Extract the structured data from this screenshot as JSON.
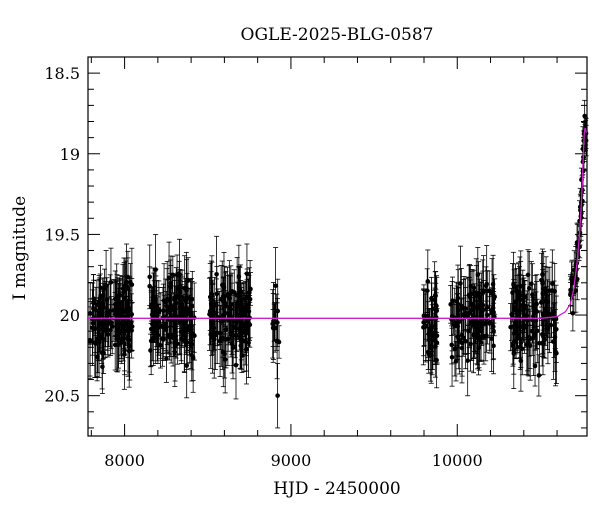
{
  "chart_data": {
    "type": "scatter",
    "title": "OGLE-2025-BLG-0587",
    "xlabel": "HJD - 2450000",
    "ylabel": "I magnitude",
    "xlim": [
      7780,
      10780
    ],
    "ylim": [
      20.75,
      18.4
    ],
    "y_inverted": true,
    "xticks": [
      8000,
      9000,
      10000
    ],
    "yticks": [
      18.5,
      19,
      19.5,
      20,
      20.5
    ],
    "xtick_labels": [
      "8000",
      "9000",
      "10000"
    ],
    "ytick_labels": [
      "18.5",
      "19",
      "19.5",
      "20",
      "20.5"
    ],
    "baseline_mag": 20.02,
    "marker_color": "#000000",
    "model_color": "#cc22cc",
    "observation_seasons": [
      {
        "start": 7790,
        "end": 8050,
        "n": 120
      },
      {
        "start": 8150,
        "end": 8420,
        "n": 140
      },
      {
        "start": 8510,
        "end": 8760,
        "n": 120
      },
      {
        "start": 8890,
        "end": 8930,
        "n": 12
      },
      {
        "start": 9790,
        "end": 9880,
        "n": 40
      },
      {
        "start": 9960,
        "end": 10230,
        "n": 110
      },
      {
        "start": 10320,
        "end": 10600,
        "n": 110
      },
      {
        "start": 10680,
        "end": 10775,
        "n": 45
      }
    ],
    "series": [
      {
        "type": "model",
        "x": [
          7780,
          10500,
          10600,
          10650,
          10680,
          10700,
          10720,
          10735,
          10745,
          10752,
          10758,
          10764,
          10770,
          10776
        ],
        "y": [
          20.02,
          20.02,
          20.01,
          19.98,
          19.93,
          19.84,
          19.68,
          19.5,
          19.33,
          19.18,
          19.02,
          18.87,
          18.84,
          18.87
        ]
      },
      {
        "type": "observations",
        "x": [
          7810,
          7850,
          7900,
          7960,
          8000,
          8170,
          8250,
          8300,
          8350,
          8405,
          8530,
          8580,
          8640,
          8700,
          8745,
          8905,
          8920,
          9810,
          9840,
          9870,
          9985,
          10050,
          10100,
          10180,
          10220,
          10340,
          10400,
          10450,
          10520,
          10580,
          10690,
          10720,
          10740,
          10755,
          10768
        ],
        "y": [
          20.05,
          19.92,
          20.12,
          20.0,
          20.22,
          19.98,
          20.08,
          19.9,
          20.03,
          20.18,
          19.95,
          20.04,
          20.11,
          19.97,
          20.02,
          20.08,
          20.5,
          20.01,
          20.25,
          19.88,
          20.05,
          19.96,
          20.12,
          20.0,
          19.9,
          20.07,
          19.94,
          20.1,
          20.0,
          19.98,
          19.78,
          19.55,
          19.35,
          19.05,
          18.9
        ],
        "err": [
          0.12,
          0.15,
          0.14,
          0.13,
          0.15,
          0.13,
          0.14,
          0.15,
          0.12,
          0.16,
          0.14,
          0.13,
          0.15,
          0.14,
          0.13,
          0.15,
          0.2,
          0.14,
          0.16,
          0.15,
          0.14,
          0.13,
          0.15,
          0.14,
          0.15,
          0.14,
          0.13,
          0.15,
          0.14,
          0.13,
          0.12,
          0.12,
          0.1,
          0.08,
          0.08
        ]
      }
    ]
  }
}
